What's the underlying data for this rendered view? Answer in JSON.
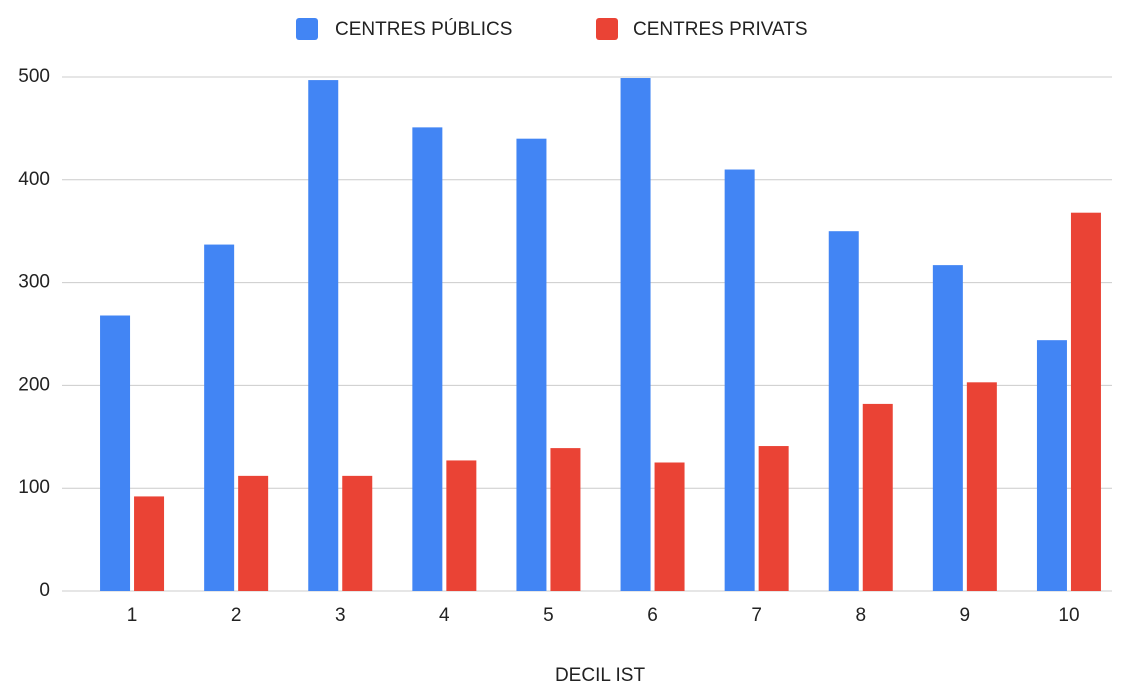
{
  "chart_data": {
    "type": "bar",
    "x_label": "DECIL IST",
    "categories": [
      "1",
      "2",
      "3",
      "4",
      "5",
      "6",
      "7",
      "8",
      "9",
      "10"
    ],
    "series": [
      {
        "name": "CENTRES PÚBLICS",
        "color": "#4285f4",
        "values": [
          268,
          337,
          497,
          451,
          440,
          499,
          410,
          350,
          317,
          244
        ]
      },
      {
        "name": "CENTRES PRIVATS",
        "color": "#ea4335",
        "values": [
          92,
          112,
          112,
          127,
          139,
          125,
          141,
          182,
          203,
          368
        ]
      }
    ],
    "ylim": [
      0,
      500
    ],
    "yticks": [
      0,
      100,
      200,
      300,
      400,
      500
    ],
    "grid": true,
    "legend": "top"
  }
}
